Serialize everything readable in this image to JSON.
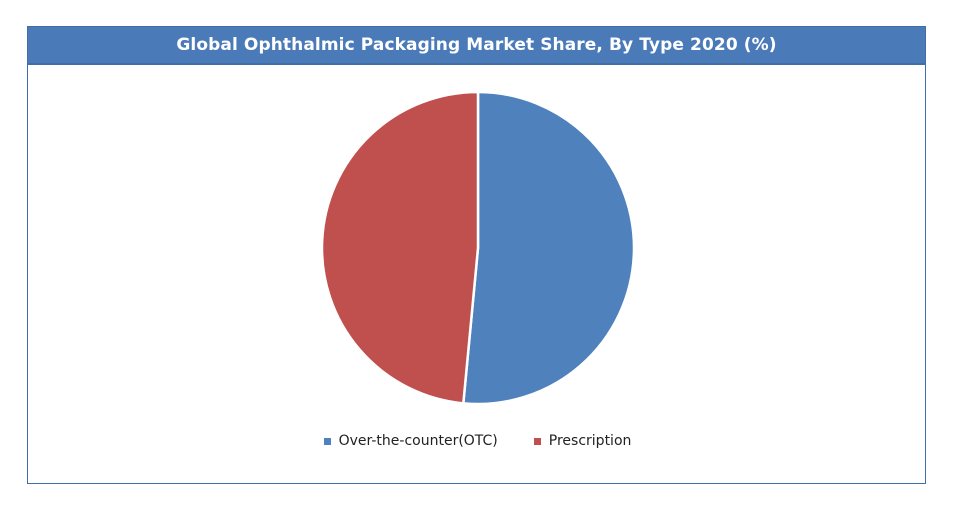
{
  "chart_data": {
    "type": "pie",
    "title": "Global Ophthalmic Packaging Market Share, By Type 2020 (%)",
    "series": [
      {
        "name": "Over-the-counter(OTC)",
        "value": 51.5,
        "color": "#4f81bd"
      },
      {
        "name": "Prescription",
        "value": 48.5,
        "color": "#c0504d"
      }
    ],
    "start_angle_deg": 0,
    "direction": "clockwise",
    "legend_position": "bottom",
    "slice_separator_color": "#ffffff"
  }
}
